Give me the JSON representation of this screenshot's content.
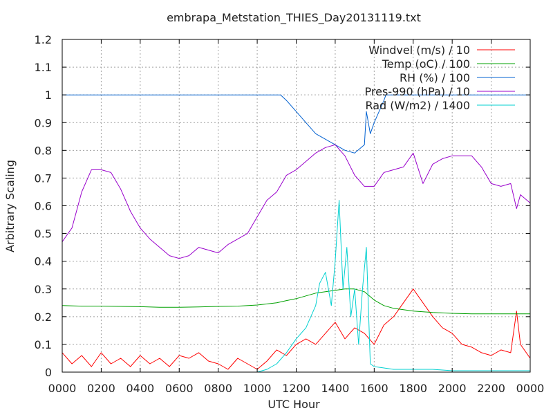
{
  "chart_data": {
    "type": "line",
    "title": "embrapa_Metstation_THIES_Day20131119.txt",
    "xlabel": "UTC Hour",
    "ylabel": "Arbitrary Scaling",
    "xlim": [
      0,
      2400
    ],
    "ylim": [
      0,
      1.2
    ],
    "x_ticks": [
      "0000",
      "0200",
      "0400",
      "0600",
      "0800",
      "1000",
      "1200",
      "1400",
      "1600",
      "1800",
      "2000",
      "2200",
      "0000"
    ],
    "y_ticks": [
      "0",
      "0.1",
      "0.2",
      "0.3",
      "0.4",
      "0.5",
      "0.6",
      "0.7",
      "0.8",
      "0.9",
      "1",
      "1.1",
      "1.2"
    ],
    "grid": true,
    "legend_position": "top-right",
    "series": [
      {
        "name": "Windvel (m/s) / 10",
        "color": "#ff0000",
        "x": [
          0,
          50,
          100,
          150,
          200,
          250,
          300,
          350,
          400,
          450,
          500,
          550,
          600,
          650,
          700,
          750,
          800,
          850,
          900,
          950,
          1000,
          1050,
          1100,
          1150,
          1200,
          1250,
          1300,
          1350,
          1400,
          1450,
          1500,
          1550,
          1600,
          1650,
          1700,
          1750,
          1800,
          1850,
          1900,
          1950,
          2000,
          2050,
          2100,
          2150,
          2200,
          2250,
          2300,
          2330,
          2350,
          2400
        ],
        "y": [
          0.07,
          0.03,
          0.06,
          0.02,
          0.07,
          0.03,
          0.05,
          0.02,
          0.06,
          0.03,
          0.05,
          0.02,
          0.06,
          0.05,
          0.07,
          0.04,
          0.03,
          0.01,
          0.05,
          0.03,
          0.01,
          0.04,
          0.08,
          0.06,
          0.1,
          0.12,
          0.1,
          0.14,
          0.18,
          0.12,
          0.16,
          0.14,
          0.1,
          0.17,
          0.2,
          0.25,
          0.3,
          0.25,
          0.2,
          0.16,
          0.14,
          0.1,
          0.09,
          0.07,
          0.06,
          0.08,
          0.07,
          0.22,
          0.1,
          0.05
        ]
      },
      {
        "name": "Temp (oC) / 100",
        "color": "#00a000",
        "x": [
          0,
          100,
          200,
          300,
          400,
          500,
          600,
          700,
          800,
          900,
          1000,
          1100,
          1150,
          1200,
          1250,
          1300,
          1350,
          1400,
          1450,
          1500,
          1550,
          1600,
          1650,
          1700,
          1800,
          1900,
          2000,
          2100,
          2200,
          2300,
          2400
        ],
        "y": [
          0.24,
          0.238,
          0.238,
          0.237,
          0.236,
          0.234,
          0.234,
          0.235,
          0.237,
          0.238,
          0.242,
          0.25,
          0.258,
          0.265,
          0.275,
          0.285,
          0.29,
          0.295,
          0.3,
          0.3,
          0.29,
          0.26,
          0.24,
          0.23,
          0.22,
          0.215,
          0.212,
          0.21,
          0.21,
          0.21,
          0.21
        ]
      },
      {
        "name": "RH (%) / 100",
        "color": "#0060d0",
        "x": [
          0,
          200,
          400,
          600,
          800,
          1000,
          1100,
          1120,
          1150,
          1200,
          1250,
          1300,
          1350,
          1400,
          1450,
          1500,
          1550,
          1560,
          1580,
          1600,
          1650,
          1660,
          1700,
          1800,
          1900,
          2000,
          2100,
          2200,
          2300,
          2400
        ],
        "y": [
          1,
          1,
          1,
          1,
          1,
          1,
          1,
          1,
          0.98,
          0.94,
          0.9,
          0.86,
          0.84,
          0.82,
          0.8,
          0.79,
          0.82,
          0.94,
          0.86,
          0.9,
          0.98,
          1,
          1,
          1,
          1,
          1,
          1,
          1,
          1,
          1
        ]
      },
      {
        "name": "Pres-990 (hPa) / 10",
        "color": "#9900cc",
        "x": [
          0,
          50,
          100,
          150,
          200,
          250,
          300,
          350,
          400,
          450,
          500,
          550,
          600,
          650,
          700,
          750,
          800,
          850,
          900,
          950,
          1000,
          1050,
          1100,
          1150,
          1200,
          1250,
          1300,
          1350,
          1400,
          1450,
          1500,
          1550,
          1600,
          1650,
          1700,
          1750,
          1800,
          1850,
          1900,
          1950,
          2000,
          2050,
          2100,
          2150,
          2200,
          2250,
          2300,
          2330,
          2350,
          2400
        ],
        "y": [
          0.47,
          0.52,
          0.65,
          0.73,
          0.73,
          0.72,
          0.66,
          0.58,
          0.52,
          0.48,
          0.45,
          0.42,
          0.41,
          0.42,
          0.45,
          0.44,
          0.43,
          0.46,
          0.48,
          0.5,
          0.56,
          0.62,
          0.65,
          0.71,
          0.73,
          0.76,
          0.79,
          0.81,
          0.82,
          0.78,
          0.71,
          0.67,
          0.67,
          0.72,
          0.73,
          0.74,
          0.79,
          0.68,
          0.75,
          0.77,
          0.78,
          0.78,
          0.78,
          0.74,
          0.68,
          0.67,
          0.68,
          0.59,
          0.64,
          0.61
        ]
      },
      {
        "name": "Rad (W/m2) / 1400",
        "color": "#00d0d0",
        "x": [
          0,
          200,
          400,
          600,
          800,
          1000,
          1050,
          1100,
          1150,
          1200,
          1250,
          1300,
          1320,
          1350,
          1380,
          1400,
          1420,
          1440,
          1460,
          1480,
          1500,
          1520,
          1540,
          1560,
          1580,
          1600,
          1700,
          1800,
          1900,
          2000,
          2100,
          2200,
          2300,
          2400
        ],
        "y": [
          0,
          0,
          0,
          0,
          0,
          0,
          0.01,
          0.03,
          0.07,
          0.12,
          0.16,
          0.24,
          0.32,
          0.36,
          0.24,
          0.4,
          0.62,
          0.3,
          0.45,
          0.2,
          0.3,
          0.1,
          0.3,
          0.45,
          0.03,
          0.02,
          0.01,
          0.01,
          0.01,
          0.005,
          0.005,
          0.005,
          0.005,
          0.005
        ]
      }
    ]
  }
}
